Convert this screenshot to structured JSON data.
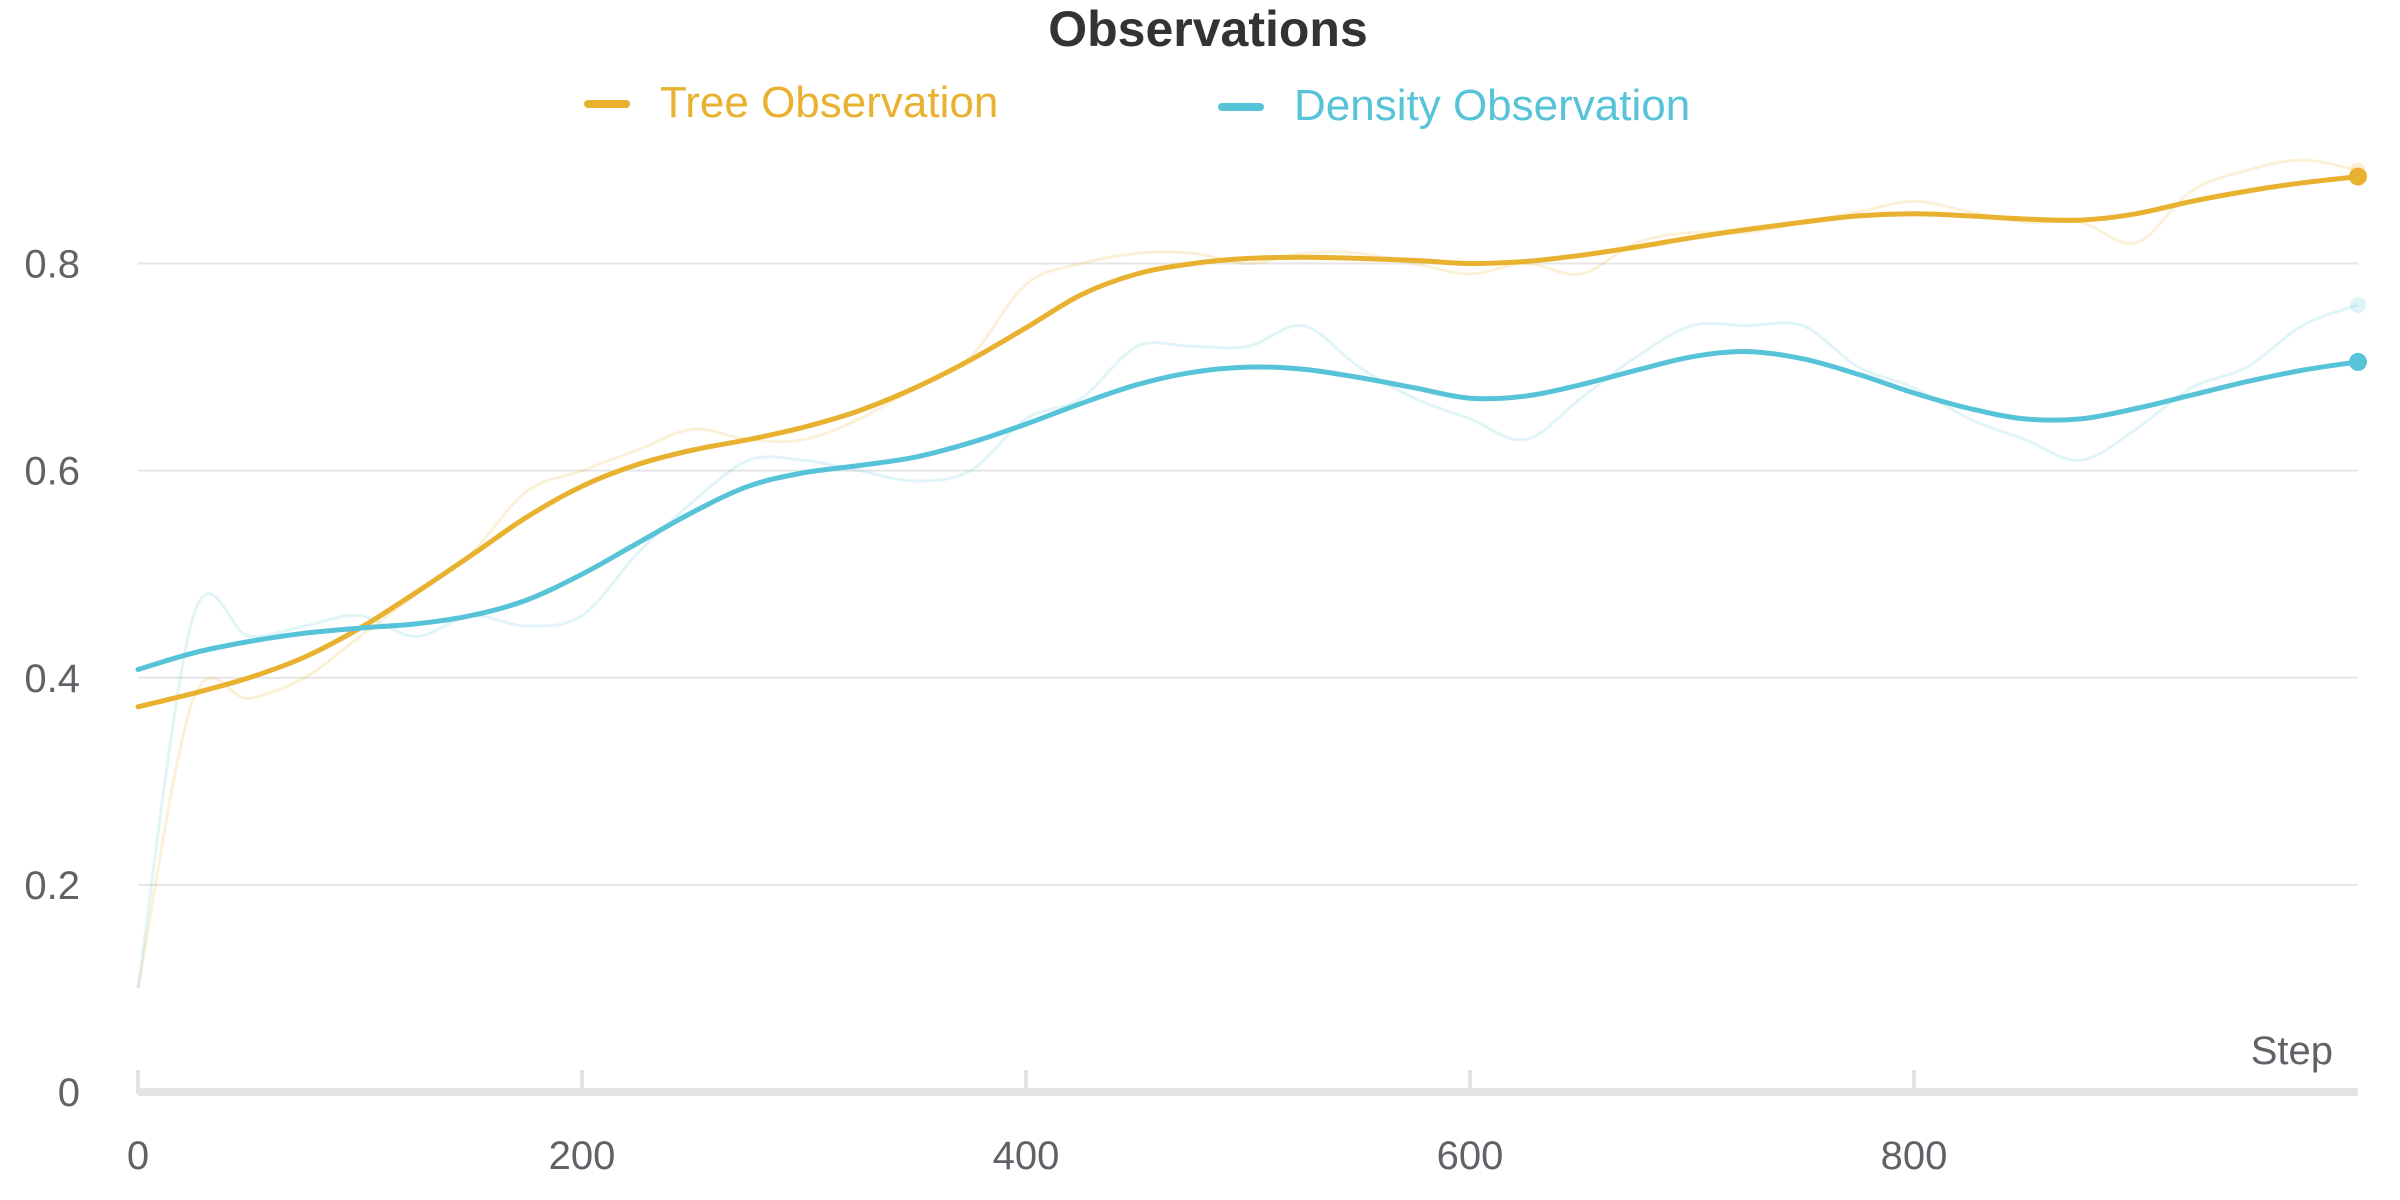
{
  "chart_data": {
    "type": "line",
    "title": "Observations",
    "xlabel": "Step",
    "ylabel": "",
    "xlim": [
      0,
      1000
    ],
    "ylim": [
      0,
      0.9
    ],
    "x_ticks": [
      0,
      200,
      400,
      600,
      800
    ],
    "y_ticks": [
      0,
      0.2,
      0.4,
      0.6,
      0.8
    ],
    "grid": true,
    "legend_position": "top-center",
    "x": [
      0,
      25,
      50,
      75,
      100,
      125,
      150,
      175,
      200,
      225,
      250,
      275,
      300,
      325,
      350,
      375,
      400,
      425,
      450,
      475,
      500,
      525,
      550,
      575,
      600,
      625,
      650,
      675,
      700,
      725,
      750,
      775,
      800,
      825,
      850,
      875,
      900,
      925,
      950,
      975,
      1000
    ],
    "series": [
      {
        "name": "Tree Observation",
        "color": "#e8b12f",
        "smoothed": [
          0.372,
          0.385,
          0.4,
          0.42,
          0.448,
          0.482,
          0.518,
          0.555,
          0.585,
          0.606,
          0.62,
          0.63,
          0.642,
          0.658,
          0.68,
          0.707,
          0.738,
          0.77,
          0.79,
          0.8,
          0.805,
          0.806,
          0.805,
          0.803,
          0.8,
          0.802,
          0.808,
          0.816,
          0.825,
          0.833,
          0.84,
          0.846,
          0.848,
          0.846,
          0.843,
          0.842,
          0.848,
          0.86,
          0.87,
          0.878,
          0.884
        ],
        "raw": [
          0.1,
          0.38,
          0.38,
          0.4,
          0.44,
          0.48,
          0.52,
          0.58,
          0.6,
          0.62,
          0.64,
          0.63,
          0.63,
          0.65,
          0.68,
          0.71,
          0.78,
          0.8,
          0.81,
          0.81,
          0.8,
          0.81,
          0.81,
          0.8,
          0.79,
          0.8,
          0.79,
          0.82,
          0.83,
          0.83,
          0.84,
          0.85,
          0.86,
          0.85,
          0.84,
          0.84,
          0.82,
          0.87,
          0.89,
          0.9,
          0.89
        ]
      },
      {
        "name": "Density Observation",
        "color": "#57c3d8",
        "smoothed": [
          0.408,
          0.424,
          0.435,
          0.443,
          0.448,
          0.452,
          0.46,
          0.475,
          0.5,
          0.53,
          0.56,
          0.585,
          0.598,
          0.605,
          0.613,
          0.627,
          0.645,
          0.665,
          0.683,
          0.695,
          0.7,
          0.698,
          0.69,
          0.68,
          0.67,
          0.672,
          0.683,
          0.697,
          0.71,
          0.715,
          0.708,
          0.693,
          0.675,
          0.66,
          0.65,
          0.65,
          0.66,
          0.673,
          0.686,
          0.697,
          0.705
        ],
        "raw": [
          0.1,
          0.46,
          0.44,
          0.45,
          0.46,
          0.44,
          0.46,
          0.45,
          0.46,
          0.52,
          0.57,
          0.61,
          0.61,
          0.6,
          0.59,
          0.6,
          0.65,
          0.67,
          0.72,
          0.72,
          0.72,
          0.74,
          0.7,
          0.67,
          0.65,
          0.63,
          0.67,
          0.71,
          0.74,
          0.74,
          0.74,
          0.7,
          0.68,
          0.65,
          0.63,
          0.61,
          0.64,
          0.68,
          0.7,
          0.74,
          0.76
        ]
      }
    ]
  }
}
